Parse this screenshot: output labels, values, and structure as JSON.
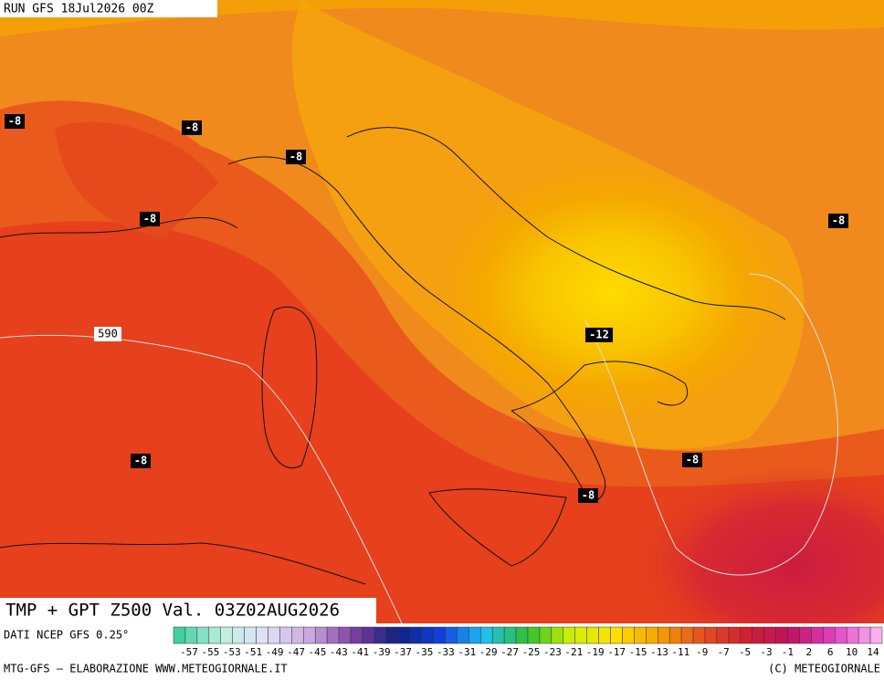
{
  "header": {
    "run": "RUN GFS 18Jul2026 00Z"
  },
  "map": {
    "contour_labels": [
      "-8",
      "-8",
      "-8",
      "-8",
      "-8",
      "-12",
      "-8",
      "-8",
      "-8"
    ],
    "isoline_label": "590"
  },
  "title": "TMP + GPT Z500 Val. 03Z02AUG2026",
  "source": "DATI NCEP GFS 0.25°",
  "colorbar": {
    "labels": [
      "-57",
      "-55",
      "-53",
      "-51",
      "-49",
      "-47",
      "-45",
      "-43",
      "-41",
      "-39",
      "-37",
      "-35",
      "-33",
      "-31",
      "-29",
      "-27",
      "-25",
      "-23",
      "-21",
      "-19",
      "-17",
      "-15",
      "-13",
      "-11",
      "-9",
      "-7",
      "-5",
      "-3",
      "-1",
      "2",
      "6",
      "10",
      "14"
    ]
  },
  "footer": {
    "left": "MTG-GFS — ELABORAZIONE WWW.METEOGIORNALE.IT",
    "right": "(C) METEOGIORNALE"
  }
}
